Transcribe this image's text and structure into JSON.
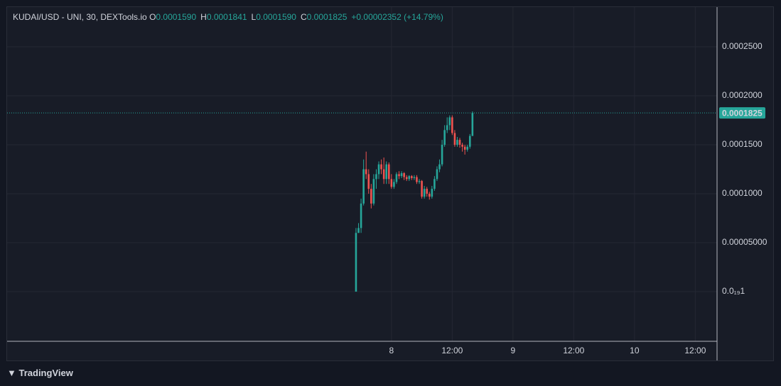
{
  "chart_data": {
    "type": "candlestick",
    "header": {
      "symbol": "KUDAI/USD - UNI, 30, DEXTools.io",
      "items": [
        {
          "label": "O",
          "value": "0.0001590"
        },
        {
          "label": "H",
          "value": "0.0001841"
        },
        {
          "label": "L",
          "value": "0.0001590"
        },
        {
          "label": "C",
          "value": "0.0001825"
        }
      ],
      "change": "+0.00002352 (+14.79%)"
    },
    "brand": "TradingView",
    "x": [
      -7,
      -6.5,
      -6,
      -5.5,
      -5,
      -4.5,
      -4,
      -3.5,
      -3,
      -2.5,
      -2,
      -1.5,
      -1,
      -0.5,
      0,
      0.5,
      1,
      1.5,
      2,
      2.5,
      3,
      3.5,
      4,
      4.5,
      5,
      5.5,
      6,
      6.5,
      7,
      7.5,
      8,
      8.5,
      9,
      9.5,
      10,
      10.5,
      11,
      11.5,
      12,
      12.5,
      13,
      13.5,
      14,
      14.5,
      15,
      15.5,
      16
    ],
    "open": [
      0,
      6e-05,
      6.5e-05,
      9e-05,
      0.000125,
      0.00012,
      0.000105,
      9e-05,
      0.000115,
      0.00012,
      0.00013,
      0.000125,
      0.000115,
      0.00013,
      0.000115,
      0.000107,
      0.000112,
      0.00012,
      0.000118,
      0.000121,
      0.000117,
      0.000115,
      0.000118,
      0.000116,
      0.000117,
      0.000112,
      0.000113,
      9.7e-05,
      0.000105,
      0.0001,
      9.7e-05,
      0.000105,
      0.000115,
      0.000125,
      0.00013,
      0.00015,
      0.000165,
      0.00017,
      0.000178,
      0.000162,
      0.00015,
      0.000155,
      0.00015,
      0.000148,
      0.000145,
      0.000148,
      0.000159
    ],
    "high": [
      6.5e-05,
      7e-05,
      9.5e-05,
      0.000135,
      0.000143,
      0.000125,
      0.00011,
      0.00012,
      0.000125,
      0.000133,
      0.000135,
      0.000137,
      0.000133,
      0.000132,
      0.00012,
      0.000115,
      0.000122,
      0.000123,
      0.000123,
      0.000122,
      0.000119,
      0.000119,
      0.000119,
      0.000119,
      0.000119,
      0.000115,
      0.000114,
      0.000108,
      0.000107,
      0.000102,
      0.000108,
      0.000118,
      0.000128,
      0.000135,
      0.000155,
      0.00017,
      0.000178,
      0.00018,
      0.00018,
      0.000165,
      0.000158,
      0.000157,
      0.000152,
      0.00015,
      0.00015,
      0.000161,
      0.0001841
    ],
    "low": [
      0,
      6e-05,
      6e-05,
      8.8e-05,
      0.000115,
      0.0001,
      8.5e-05,
      8.8e-05,
      0.000105,
      0.000115,
      0.00012,
      0.00011,
      0.00011,
      0.00011,
      0.000105,
      0.000105,
      0.00011,
      0.000115,
      0.000116,
      0.000114,
      0.000113,
      0.000113,
      0.000114,
      0.000114,
      0.00011,
      0.00011,
      9.5e-05,
      9.5e-05,
      9.7e-05,
      9.4e-05,
      9.5e-05,
      0.000103,
      0.000113,
      0.000122,
      0.000128,
      0.000148,
      0.000162,
      0.000165,
      0.00016,
      0.000148,
      0.000148,
      0.000147,
      0.000143,
      0.00014,
      0.000143,
      0.000146,
      0.000159
    ],
    "close": [
      6e-05,
      6.5e-05,
      9e-05,
      0.000125,
      0.00012,
      0.000105,
      9e-05,
      0.000115,
      0.00012,
      0.00013,
      0.000125,
      0.000115,
      0.00013,
      0.000115,
      0.000107,
      0.000112,
      0.00012,
      0.000118,
      0.000121,
      0.000117,
      0.000115,
      0.000118,
      0.000116,
      0.000117,
      0.000112,
      0.000113,
      9.7e-05,
      0.000105,
      0.0001,
      9.7e-05,
      0.000105,
      0.000115,
      0.000125,
      0.00013,
      0.00015,
      0.000165,
      0.00017,
      0.000178,
      0.000162,
      0.00015,
      0.000155,
      0.00015,
      0.000148,
      0.000145,
      0.000148,
      0.000159,
      0.0001825
    ],
    "up_color": "#26a69a",
    "down_color": "#ef5350",
    "last_price": 0.0001825,
    "xlim": [
      -75.9,
      64.3
    ],
    "xticks": [
      {
        "value": 0,
        "label": "8"
      },
      {
        "value": 12,
        "label": "12:00"
      },
      {
        "value": 24,
        "label": "9"
      },
      {
        "value": 36,
        "label": "12:00"
      },
      {
        "value": 48,
        "label": "10"
      },
      {
        "value": 60,
        "label": "12:00"
      }
    ],
    "ylim": [
      -5.07e-05,
      0.0002906
    ],
    "yticks": [
      {
        "value": 1e-20,
        "label": "0.0₁₉1"
      },
      {
        "value": 5e-05,
        "label": "0.00005000"
      },
      {
        "value": 0.0001,
        "label": "0.0001000"
      },
      {
        "value": 0.00015,
        "label": "0.0001500"
      },
      {
        "value": 0.0002,
        "label": "0.0002000"
      },
      {
        "value": 0.00025,
        "label": "0.0002500"
      }
    ],
    "grid": true
  }
}
